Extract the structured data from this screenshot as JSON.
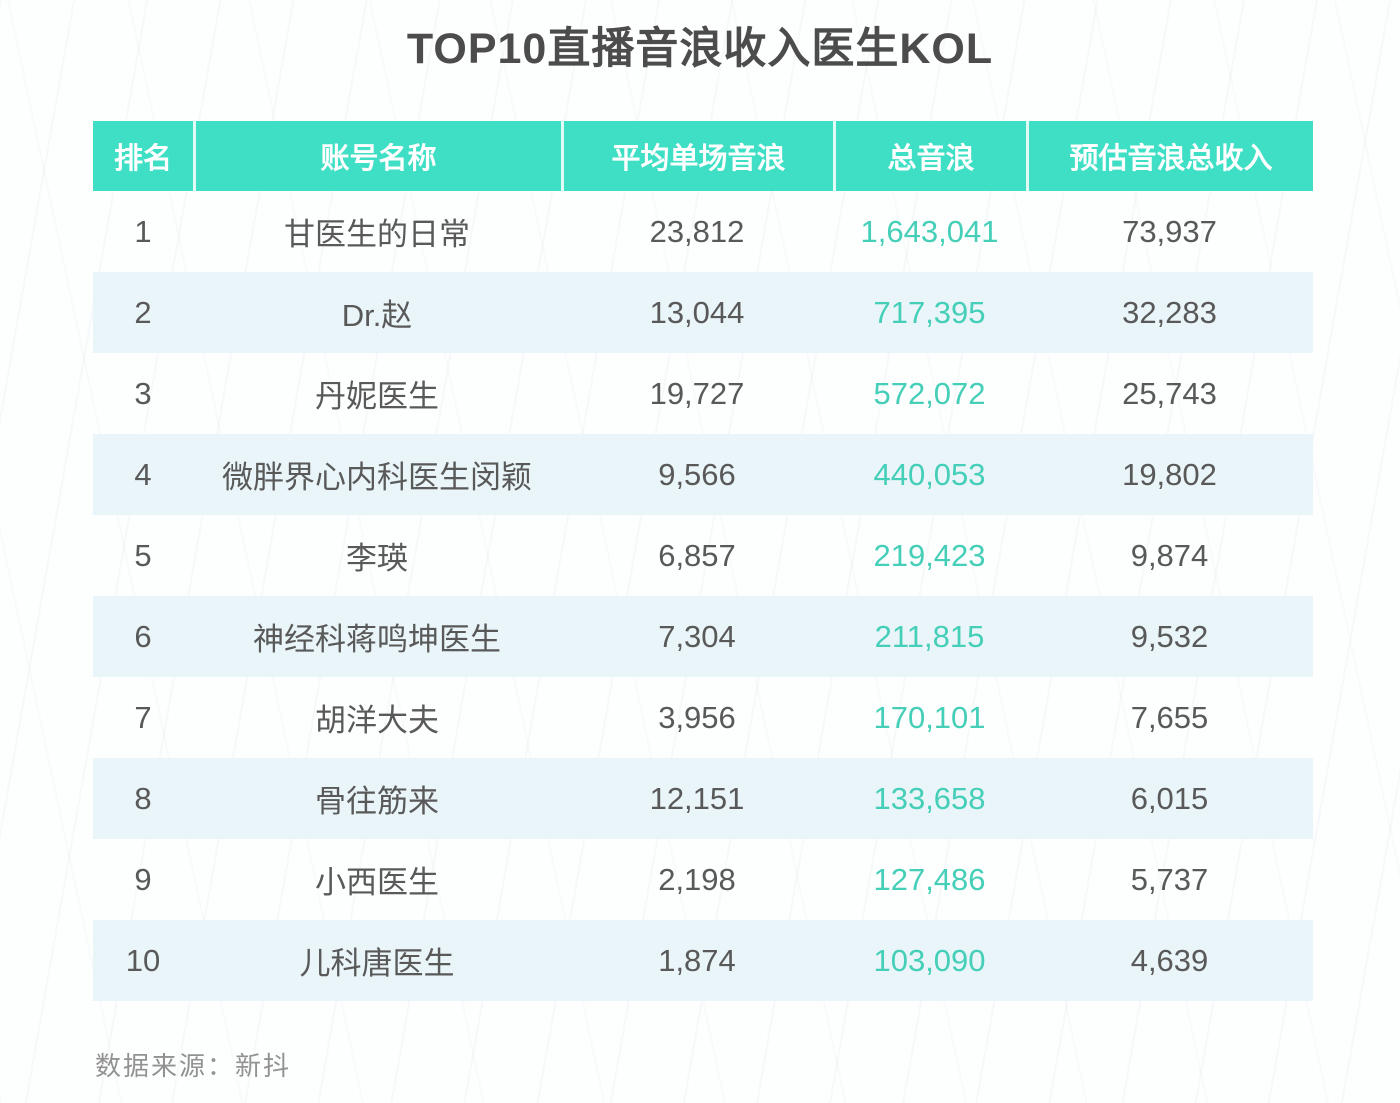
{
  "page": {
    "source_note": "数据来源：新抖"
  },
  "chart_data": {
    "type": "table",
    "title": "TOP10直播音浪收入医生KOL",
    "columns": [
      "排名",
      "账号名称",
      "平均单场音浪",
      "总音浪",
      "预估音浪总收入"
    ],
    "rows": [
      {
        "rank": "1",
        "name": "甘医生的日常",
        "avg_per_show": "23,812",
        "total_yinlang": "1,643,041",
        "est_income": "73,937"
      },
      {
        "rank": "2",
        "name": "Dr.赵",
        "avg_per_show": "13,044",
        "total_yinlang": "717,395",
        "est_income": "32,283"
      },
      {
        "rank": "3",
        "name": "丹妮医生",
        "avg_per_show": "19,727",
        "total_yinlang": "572,072",
        "est_income": "25,743"
      },
      {
        "rank": "4",
        "name": "微胖界心内科医生闵颖",
        "avg_per_show": "9,566",
        "total_yinlang": "440,053",
        "est_income": "19,802"
      },
      {
        "rank": "5",
        "name": "李瑛",
        "avg_per_show": "6,857",
        "total_yinlang": "219,423",
        "est_income": "9,874"
      },
      {
        "rank": "6",
        "name": "神经科蒋鸣坤医生",
        "avg_per_show": "7,304",
        "total_yinlang": "211,815",
        "est_income": "9,532"
      },
      {
        "rank": "7",
        "name": "胡洋大夫",
        "avg_per_show": "3,956",
        "total_yinlang": "170,101",
        "est_income": "7,655"
      },
      {
        "rank": "8",
        "name": "骨往筋来",
        "avg_per_show": "12,151",
        "total_yinlang": "133,658",
        "est_income": "6,015"
      },
      {
        "rank": "9",
        "name": "小西医生",
        "avg_per_show": "2,198",
        "total_yinlang": "127,486",
        "est_income": "5,737"
      },
      {
        "rank": "10",
        "name": "儿科唐医生",
        "avg_per_show": "1,874",
        "total_yinlang": "103,090",
        "est_income": "4,639"
      }
    ],
    "colors": {
      "header_bg": "#3edfc4",
      "total_column_text": "#45cfb8",
      "body_text": "#595959",
      "alt_row_bg": "#e9f5f9",
      "title_text": "#4c4c4c"
    }
  }
}
